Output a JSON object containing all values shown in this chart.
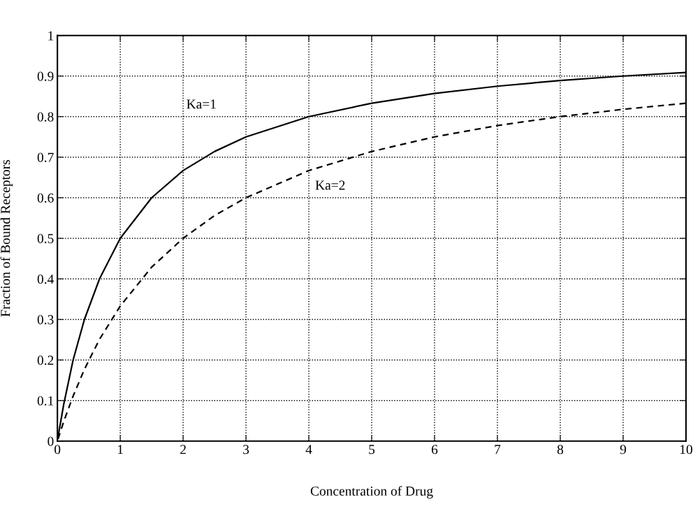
{
  "chart_data": {
    "type": "line",
    "xlabel": "Concentration of Drug",
    "ylabel": "Fraction of Bound Receptors",
    "x": [
      0.01,
      0.1,
      0.25,
      0.43,
      0.67,
      1,
      1.5,
      2,
      2.5,
      3,
      4,
      5,
      6,
      7,
      8,
      9,
      10
    ],
    "series": [
      {
        "name": "Ka=1",
        "color": "#000000",
        "line_style": "solid",
        "values": [
          0.01,
          0.09,
          0.2,
          0.3,
          0.4,
          0.5,
          0.6,
          0.667,
          0.714,
          0.75,
          0.8,
          0.833,
          0.857,
          0.875,
          0.889,
          0.9,
          0.909
        ]
      },
      {
        "name": "Ka=2",
        "color": "#000000",
        "line_style": "dashed",
        "values": [
          0.005,
          0.048,
          0.111,
          0.177,
          0.251,
          0.333,
          0.429,
          0.5,
          0.556,
          0.6,
          0.667,
          0.714,
          0.75,
          0.778,
          0.8,
          0.818,
          0.833
        ]
      }
    ],
    "xlim": [
      0,
      10
    ],
    "xticks": [
      0,
      1,
      2,
      3,
      4,
      5,
      6,
      7,
      8,
      9,
      10
    ],
    "ylim": [
      0,
      1
    ],
    "yticks": [
      0,
      0.1,
      0.2,
      0.3,
      0.4,
      0.5,
      0.6,
      0.7,
      0.8,
      0.9,
      1
    ],
    "grid": true,
    "marker": "none",
    "legend": false
  }
}
